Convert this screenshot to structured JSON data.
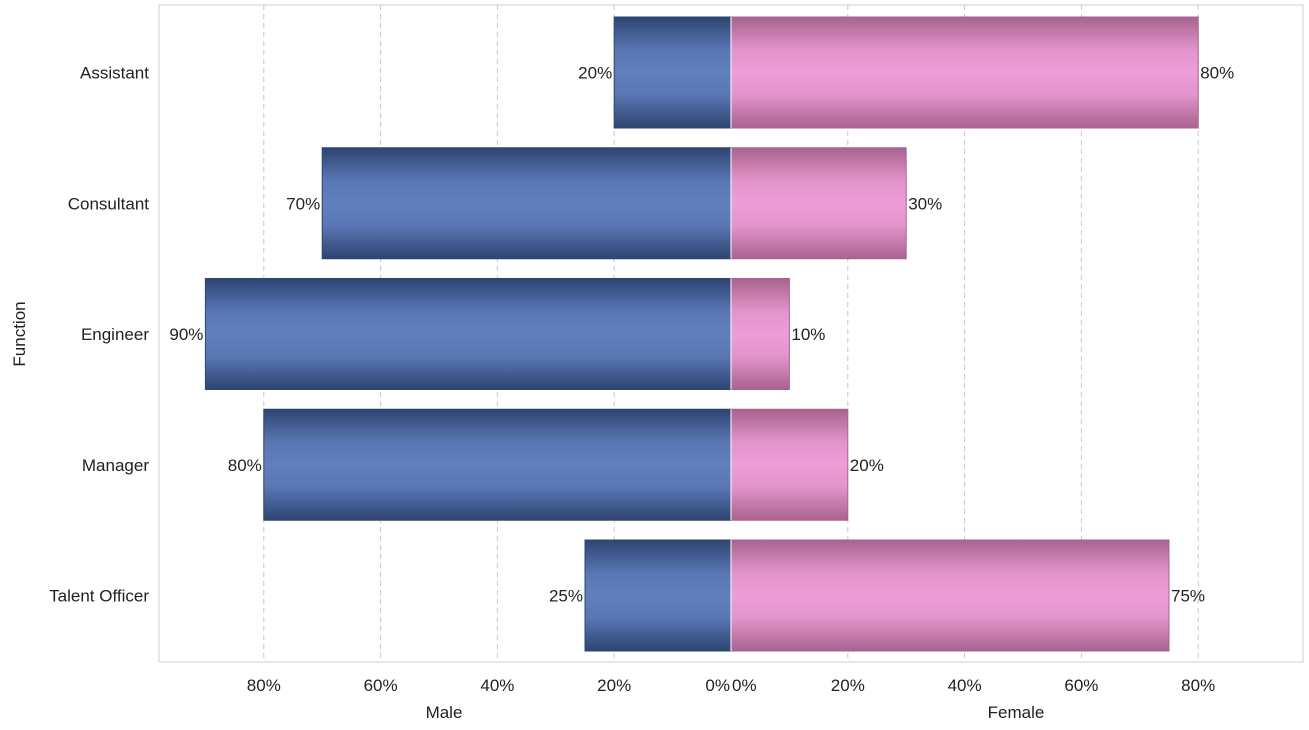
{
  "chart_data": {
    "type": "bar",
    "orientation": "horizontal-diverging",
    "categories": [
      "Assistant",
      "Consultant",
      "Engineer",
      "Manager",
      "Talent Officer"
    ],
    "series": [
      {
        "name": "Male",
        "values": [
          20,
          70,
          90,
          80,
          25
        ],
        "labels": [
          "20%",
          "70%",
          "90%",
          "80%",
          "25%"
        ],
        "color": "#627fbd",
        "edge_color": "#2e4571"
      },
      {
        "name": "Female",
        "values": [
          80,
          30,
          10,
          20,
          75
        ],
        "labels": [
          "80%",
          "30%",
          "10%",
          "20%",
          "75%"
        ],
        "color": "#ee9dd6",
        "edge_color": "#a8638f"
      }
    ],
    "ylabel": "Function",
    "xlabels": [
      "Male",
      "Female"
    ],
    "xlim": [
      0,
      98
    ],
    "x_ticks": [
      0,
      20,
      40,
      60,
      80
    ],
    "x_tick_labels_male": [
      "0%",
      "20%",
      "40%",
      "60%",
      "80%"
    ],
    "x_tick_labels_female": [
      "0%",
      "20%",
      "40%",
      "60%",
      "80%"
    ],
    "grid": true,
    "legend": "none"
  }
}
